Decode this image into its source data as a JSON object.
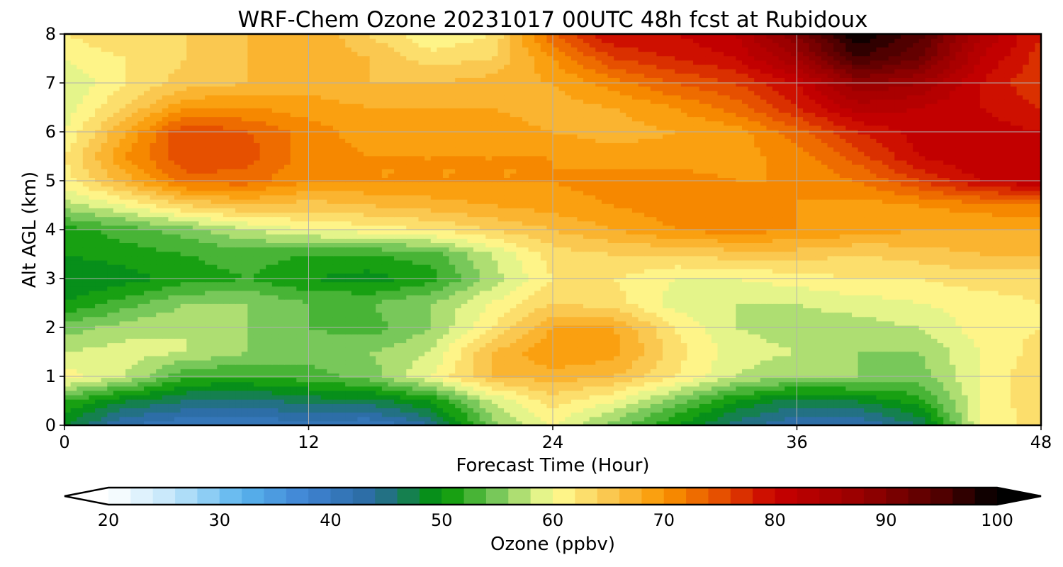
{
  "chart_data": {
    "type": "heatmap",
    "title": "WRF-Chem Ozone  20231017 00UTC 48h fcst at Rubidoux",
    "xlabel": "Forecast Time (Hour)",
    "ylabel": "Alt AGL (km)",
    "xlim": [
      0,
      48
    ],
    "ylim": [
      0,
      8
    ],
    "x_ticks": [
      "0",
      "12",
      "24",
      "36",
      "48"
    ],
    "y_ticks": [
      "0",
      "1",
      "2",
      "3",
      "4",
      "5",
      "6",
      "7",
      "8"
    ],
    "grid": true,
    "x": [
      0,
      3,
      6,
      9,
      12,
      15,
      18,
      21,
      24,
      27,
      30,
      33,
      36,
      39,
      42,
      45,
      48
    ],
    "y": [
      0,
      0.5,
      1,
      1.5,
      2,
      2.5,
      3,
      3.5,
      4,
      4.5,
      5,
      5.5,
      6,
      6.5,
      7,
      7.5,
      8
    ],
    "z": [
      [
        48,
        42,
        40,
        40,
        41,
        40,
        44,
        55,
        60,
        55,
        50,
        45,
        42,
        42,
        46,
        60,
        63
      ],
      [
        52,
        48,
        46,
        45,
        47,
        47,
        50,
        58,
        63,
        60,
        55,
        50,
        47,
        48,
        51,
        60,
        64
      ],
      [
        61,
        58,
        52,
        52,
        53,
        55,
        60,
        66,
        67,
        66,
        62,
        58,
        56,
        56,
        55,
        60,
        64
      ],
      [
        58,
        59,
        58,
        56,
        55,
        56,
        58,
        66,
        70,
        69,
        63,
        59,
        58,
        56,
        56,
        60,
        63
      ],
      [
        55,
        57,
        58,
        56,
        54,
        53,
        56,
        62,
        68,
        68,
        62,
        58,
        57,
        57,
        58,
        61,
        62
      ],
      [
        50,
        53,
        56,
        56,
        54,
        54,
        56,
        60,
        64,
        63,
        59,
        58,
        58,
        59,
        60,
        61,
        62
      ],
      [
        48,
        49,
        51,
        52,
        50,
        49,
        51,
        57,
        62,
        62,
        60,
        60,
        61,
        62,
        62,
        63,
        63
      ],
      [
        50,
        51,
        52,
        53,
        52,
        52,
        53,
        58,
        63,
        64,
        64,
        65,
        65,
        64,
        65,
        66,
        66
      ],
      [
        51,
        53,
        55,
        58,
        60,
        61,
        62,
        64,
        66,
        68,
        70,
        71,
        70,
        69,
        68,
        68,
        68
      ],
      [
        57,
        60,
        64,
        66,
        65,
        66,
        67,
        68,
        69,
        70,
        71,
        71,
        70,
        69,
        70,
        71,
        72
      ],
      [
        61,
        67,
        73,
        73,
        70,
        70,
        70,
        70,
        70,
        71,
        71,
        70,
        70,
        72,
        76,
        80,
        82
      ],
      [
        62,
        70,
        76,
        75,
        71,
        70,
        70,
        70,
        70,
        69,
        69,
        69,
        71,
        75,
        80,
        82,
        82
      ],
      [
        60,
        68,
        76,
        74,
        71,
        69,
        69,
        69,
        68,
        67,
        68,
        69,
        73,
        78,
        81,
        81,
        80
      ],
      [
        59,
        64,
        70,
        70,
        69,
        68,
        68,
        68,
        67,
        68,
        70,
        73,
        78,
        83,
        82,
        80,
        78
      ],
      [
        58,
        62,
        65,
        66,
        67,
        66,
        66,
        67,
        68,
        71,
        74,
        76,
        80,
        88,
        86,
        80,
        76
      ],
      [
        60,
        62,
        64,
        66,
        68,
        66,
        63,
        64,
        70,
        76,
        78,
        80,
        86,
        96,
        92,
        82,
        77
      ],
      [
        62,
        64,
        64,
        66,
        68,
        64,
        60,
        62,
        74,
        80,
        80,
        82,
        90,
        100,
        95,
        84,
        78
      ]
    ],
    "colorbar": {
      "label": "Ozone  (ppbv)",
      "ticks": [
        "20",
        "30",
        "40",
        "50",
        "60",
        "70",
        "80",
        "90",
        "100"
      ],
      "min": 20,
      "max": 100,
      "step": 2,
      "extend": "both",
      "orientation": "horizontal",
      "colors": {
        "v20": "#ffffff",
        "v26": "#bfe5fa",
        "v32": "#5ab4ee",
        "v38": "#3e82d2",
        "v44": "#2a6a9e",
        "v50": "#009600",
        "v55": "#78c85a",
        "v60": "#ffff96",
        "v65": "#fac850",
        "v70": "#fa9600",
        "v75": "#e65000",
        "v80": "#c80000",
        "v88": "#960000",
        "v95": "#500000",
        "v100": "#000000"
      }
    }
  }
}
